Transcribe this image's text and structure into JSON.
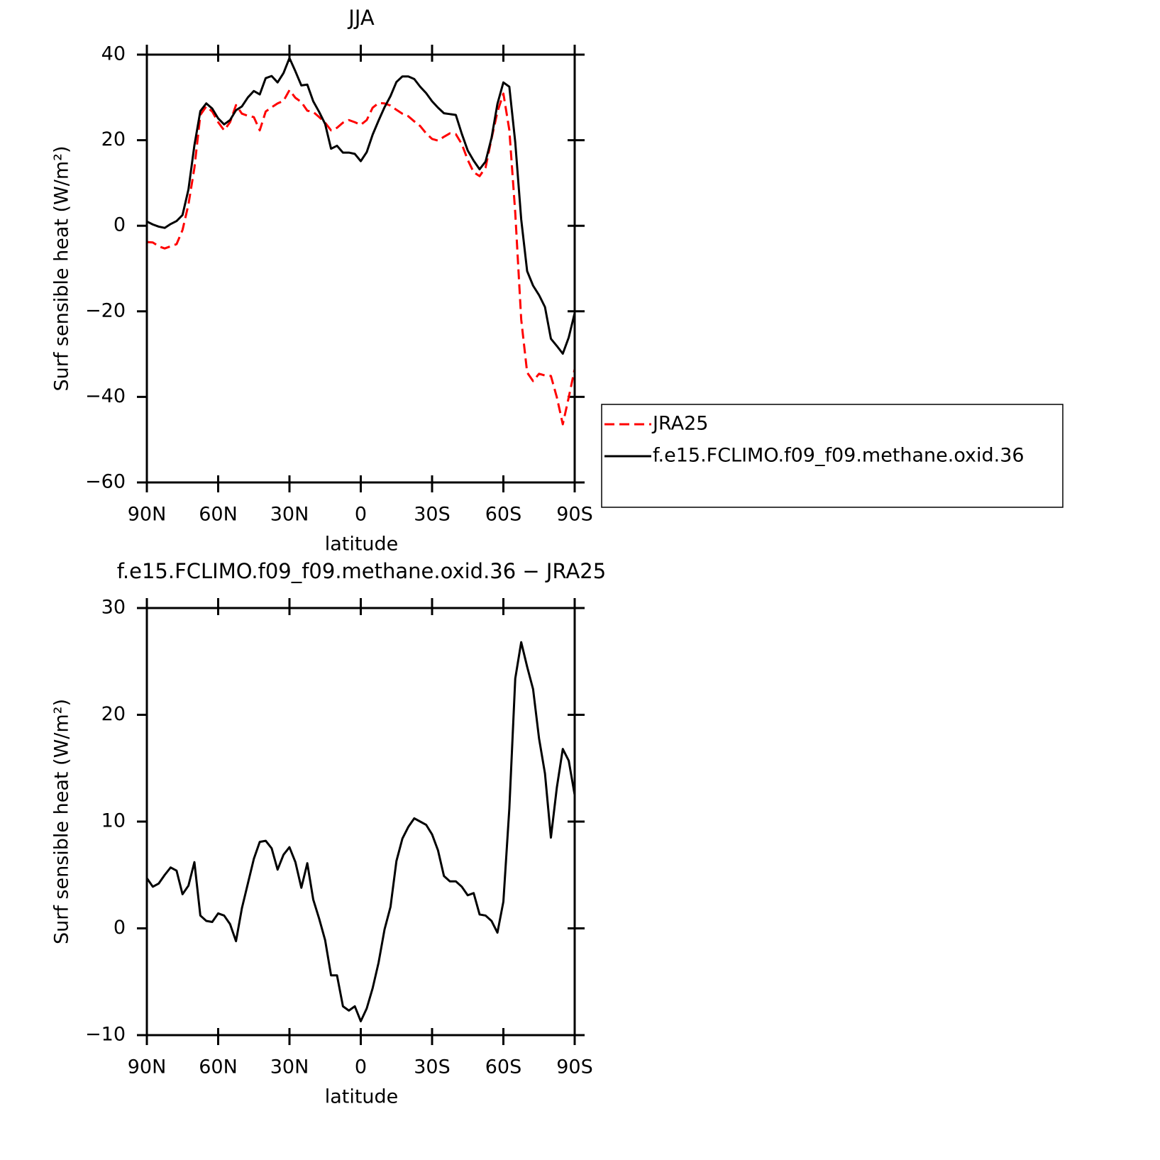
{
  "chart_data": [
    {
      "type": "line",
      "title": "JJA",
      "ylabel": "Surf sensible heat (W/m²)",
      "xlabel": "latitude",
      "xlim": [
        90,
        -90
      ],
      "ylim": [
        -60,
        40
      ],
      "xticks": [
        {
          "value": 90,
          "label": "90N"
        },
        {
          "value": 60,
          "label": "60N"
        },
        {
          "value": 30,
          "label": "30N"
        },
        0,
        {
          "value": -30,
          "label": "30S"
        },
        {
          "value": -60,
          "label": "60S"
        },
        {
          "value": -90,
          "label": "90S"
        }
      ],
      "yticks": [
        {
          "value": -60,
          "label": "−60"
        },
        {
          "value": -40,
          "label": "−40"
        },
        {
          "value": -20,
          "label": "−20"
        },
        0,
        20,
        40
      ],
      "legend": "right",
      "x": [
        90,
        87.5,
        85,
        82.5,
        80,
        77.5,
        75,
        72.5,
        70,
        67.5,
        65,
        62.5,
        60,
        57.5,
        55,
        52.5,
        50,
        47.5,
        45,
        42.5,
        40,
        37.5,
        35,
        32.5,
        30,
        27.5,
        25,
        22.5,
        20,
        17.5,
        15,
        12.5,
        10,
        7.5,
        5,
        2.5,
        0,
        -2.5,
        -5,
        -7.5,
        -10,
        -12.5,
        -15,
        -17.5,
        -20,
        -22.5,
        -25,
        -27.5,
        -30,
        -32.5,
        -35,
        -37.5,
        -40,
        -42.5,
        -45,
        -47.5,
        -50,
        -52.5,
        -55,
        -57.5,
        -60,
        -62.5,
        -65,
        -67.5,
        -70,
        -72.5,
        -75,
        -77.5,
        -80,
        -82.5,
        -85,
        -87.5,
        -90
      ],
      "series": [
        {
          "name": "JRA25",
          "color": "#ff0000",
          "linestyle": "dashed",
          "values": [
            -3.8,
            -3.9,
            -4.8,
            -5.3,
            -4.8,
            -4.3,
            -1,
            5,
            13.5,
            25.9,
            27.9,
            26.7,
            24.2,
            22.3,
            24.2,
            28.2,
            26.2,
            25.7,
            25.4,
            22.3,
            26.7,
            27.7,
            28.6,
            29.2,
            31.7,
            29.9,
            28.9,
            26.9,
            26.6,
            25.4,
            24.1,
            22.3,
            22.9,
            24.1,
            24.7,
            24.2,
            23.6,
            24.7,
            27.6,
            28.7,
            28.6,
            28.1,
            27.1,
            26.2,
            25.6,
            24.4,
            23.3,
            21.6,
            20.3,
            19.9,
            20.8,
            21.6,
            21.4,
            19.1,
            15.4,
            12.5,
            11.6,
            13.6,
            20.3,
            26.6,
            30.9,
            22.4,
            3,
            -21.9,
            -34.3,
            -36.3,
            -34.6,
            -35,
            -35.1,
            -40.1,
            -46.4,
            -40.1,
            -33.5
          ]
        },
        {
          "name": "f.e15.FCLIMO.f09_f09.methane.oxid.36",
          "color": "#000000",
          "linestyle": "solid",
          "values": [
            1,
            0.3,
            -0.2,
            -0.5,
            0.4,
            1.1,
            2.5,
            8.5,
            18.8,
            26.8,
            28.6,
            27.4,
            25.1,
            23.7,
            24.7,
            27,
            27.9,
            30,
            31.5,
            30.7,
            34.5,
            35,
            33.5,
            35.7,
            39.2,
            36.1,
            32.8,
            33,
            29.1,
            26.6,
            23.8,
            18,
            18.7,
            17.1,
            17.1,
            16.8,
            15.1,
            17.2,
            21.3,
            24.6,
            27.7,
            30.3,
            33.6,
            34.9,
            34.9,
            34.3,
            32.5,
            31,
            29.1,
            27.6,
            26.3,
            26.1,
            25.9,
            21.5,
            17.6,
            15.2,
            13.2,
            15,
            20.5,
            28.5,
            33.5,
            32.5,
            19.5,
            1.5,
            -10.6,
            -14,
            -16.2,
            -19,
            -26.4,
            -28.1,
            -29.9,
            -26.1,
            -20.4
          ]
        }
      ]
    },
    {
      "type": "line",
      "title": "f.e15.FCLIMO.f09_f09.methane.oxid.36 − JRA25",
      "ylabel": "Surf sensible heat (W/m²)",
      "xlabel": "latitude",
      "xlim": [
        90,
        -90
      ],
      "ylim": [
        -10,
        30
      ],
      "xticks": [
        {
          "value": 90,
          "label": "90N"
        },
        {
          "value": 60,
          "label": "60N"
        },
        {
          "value": 30,
          "label": "30N"
        },
        0,
        {
          "value": -30,
          "label": "30S"
        },
        {
          "value": -60,
          "label": "60S"
        },
        {
          "value": -90,
          "label": "90S"
        }
      ],
      "yticks": [
        {
          "value": -10,
          "label": "−10"
        },
        0,
        10,
        20,
        30
      ],
      "x": [
        90,
        87.5,
        85,
        82.5,
        80,
        77.5,
        75,
        72.5,
        70,
        67.5,
        65,
        62.5,
        60,
        57.5,
        55,
        52.5,
        50,
        47.5,
        45,
        42.5,
        40,
        37.5,
        35,
        32.5,
        30,
        27.5,
        25,
        22.5,
        20,
        17.5,
        15,
        12.5,
        10,
        7.5,
        5,
        2.5,
        0,
        -2.5,
        -5,
        -7.5,
        -10,
        -12.5,
        -15,
        -17.5,
        -20,
        -22.5,
        -25,
        -27.5,
        -30,
        -32.5,
        -35,
        -37.5,
        -40,
        -42.5,
        -45,
        -47.5,
        -50,
        -52.5,
        -55,
        -57.5,
        -60,
        -62.5,
        -65,
        -67.5,
        -70,
        -72.5,
        -75,
        -77.5,
        -80,
        -82.5,
        -85,
        -87.5,
        -90
      ],
      "color": "#000000",
      "values": [
        4.7,
        3.9,
        4.2,
        5,
        5.7,
        5.4,
        3.2,
        4,
        6.2,
        1.2,
        0.7,
        0.6,
        1.4,
        1.2,
        0.4,
        -1.2,
        1.9,
        4.2,
        6.5,
        8.1,
        8.2,
        7.5,
        5.5,
        6.9,
        7.6,
        6.2,
        3.8,
        6.1,
        2.7,
        0.9,
        -1.1,
        -4.4,
        -4.4,
        -7.3,
        -7.7,
        -7.3,
        -8.7,
        -7.5,
        -5.6,
        -3.2,
        -0.1,
        2,
        6.3,
        8.4,
        9.5,
        10.3,
        10,
        9.7,
        8.8,
        7.3,
        4.9,
        4.4,
        4.4,
        3.9,
        3.1,
        3.3,
        1.3,
        1.2,
        0.7,
        -0.4,
        2.5,
        11.2,
        23.4,
        26.8,
        24.5,
        22.4,
        17.8,
        14.5,
        8.5,
        13.2,
        16.8,
        15.7,
        12.5
      ]
    }
  ]
}
